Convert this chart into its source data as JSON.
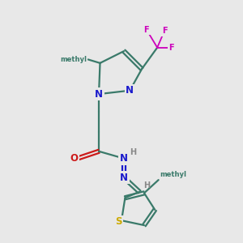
{
  "bg_color": "#e8e8e8",
  "bond_color": "#3a7a6a",
  "n_color": "#1a1acc",
  "o_color": "#cc1a1a",
  "s_color": "#ccaa00",
  "f_color": "#cc00bb",
  "h_color": "#888888",
  "figsize": [
    3.0,
    3.0
  ],
  "dpi": 100,
  "xlim": [
    0,
    10
  ],
  "ylim": [
    0,
    10
  ]
}
